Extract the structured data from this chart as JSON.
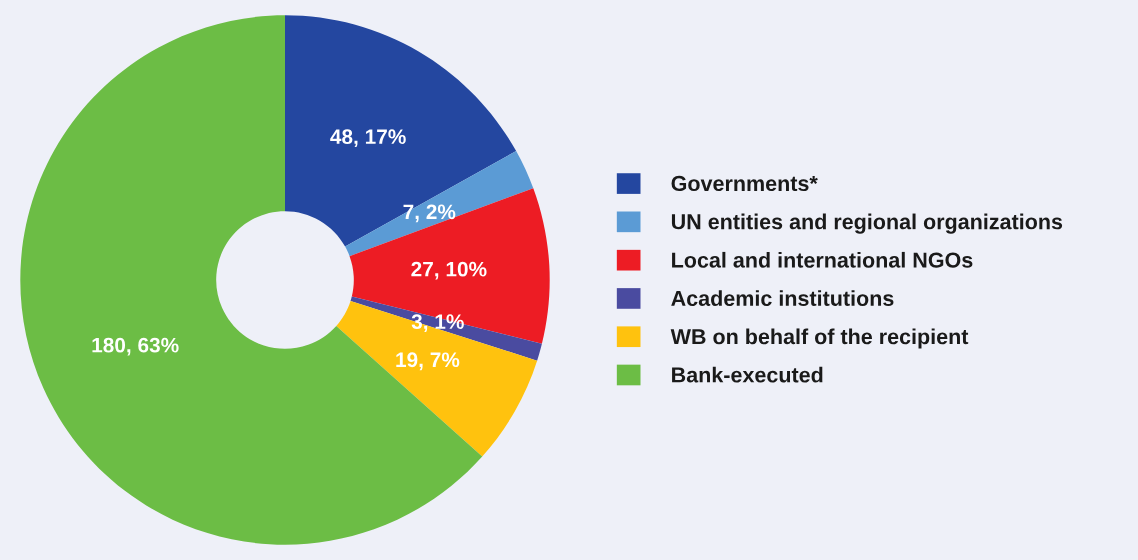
{
  "chart_data": {
    "type": "donut",
    "categories": [
      "Governments*",
      "UN entities and regional organizations",
      "Local and international NGOs",
      "Academic institutions",
      "WB on behalf of the recipient",
      "Bank-executed"
    ],
    "values": [
      48,
      7,
      27,
      3,
      19,
      180
    ],
    "value_labels": [
      "48, 17%",
      "7, 2%",
      "27, 10%",
      "3, 1%",
      "19, 7%",
      "180, 63%"
    ],
    "colors": [
      "#2447a0",
      "#5b9bd5",
      "#ed1c24",
      "#4a4ba0",
      "#ffc20e",
      "#6cbd45"
    ],
    "legend": "right"
  }
}
